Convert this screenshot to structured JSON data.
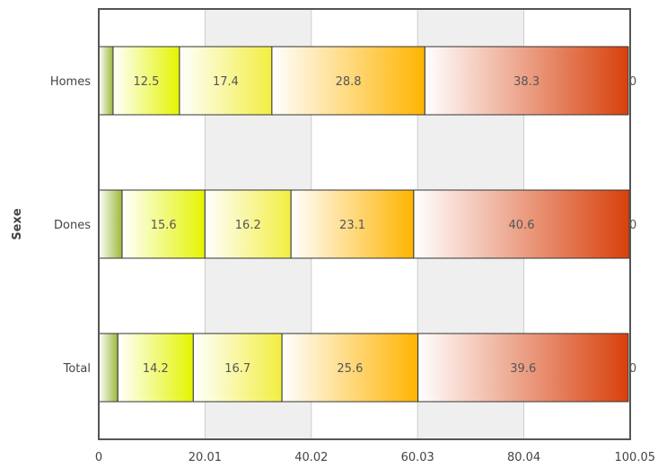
{
  "chart_data": {
    "type": "bar",
    "orientation": "horizontal",
    "stacked": true,
    "ylabel": "Sexe",
    "categories": [
      "Homes",
      "Dones",
      "Total"
    ],
    "xlim": [
      0,
      100.05
    ],
    "xticks": [
      "0",
      "20.01",
      "40.02",
      "60.03",
      "80.04",
      "100.05"
    ],
    "grid": true,
    "alternating_bands": true,
    "series": [
      {
        "color": "#9cb83a",
        "values": [
          2.7,
          4.4,
          3.6
        ],
        "labels": [
          "",
          "",
          ""
        ]
      },
      {
        "color": "#e4f400",
        "values": [
          12.5,
          15.6,
          14.2
        ],
        "labels": [
          "12.5",
          "15.6",
          "14.2"
        ]
      },
      {
        "color": "#f2ee40",
        "values": [
          17.4,
          16.2,
          16.7
        ],
        "labels": [
          "17.4",
          "16.2",
          "16.7"
        ]
      },
      {
        "color": "#ffb400",
        "values": [
          28.8,
          23.1,
          25.6
        ],
        "labels": [
          "28.8",
          "23.1",
          "25.6"
        ]
      },
      {
        "color": "#d8400c",
        "values": [
          38.3,
          40.6,
          39.6
        ],
        "labels": [
          "38.3",
          "40.6",
          "39.6"
        ]
      },
      {
        "color": "#c03000",
        "values": [
          0,
          0,
          0
        ],
        "labels": [
          "0",
          "0",
          "0"
        ]
      }
    ]
  }
}
